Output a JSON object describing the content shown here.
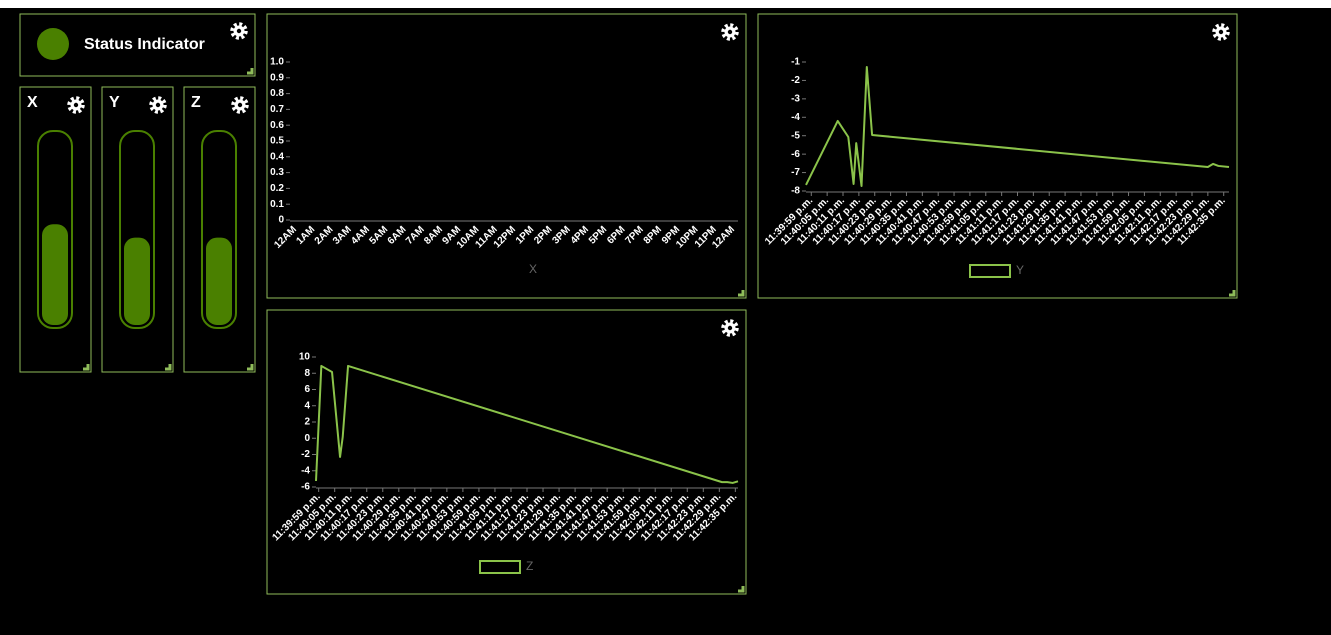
{
  "status": {
    "label": "Status Indicator",
    "color": "#4a8000"
  },
  "gauges": [
    {
      "label": "X",
      "value": 0.53,
      "color": "#4a8000"
    },
    {
      "label": "Y",
      "value": 0.46,
      "color": "#4a8000"
    },
    {
      "label": "Z",
      "value": 0.46,
      "color": "#4a8000"
    }
  ],
  "chart_data": [
    {
      "type": "line",
      "categories": [
        "12AM",
        "1AM",
        "2AM",
        "3AM",
        "4AM",
        "5AM",
        "6AM",
        "7AM",
        "8AM",
        "9AM",
        "10AM",
        "11AM",
        "12PM",
        "1PM",
        "2PM",
        "3PM",
        "4PM",
        "5PM",
        "6PM",
        "7PM",
        "8PM",
        "9PM",
        "10PM",
        "11PM",
        "12AM"
      ],
      "series": [
        {
          "name": "X"
        }
      ],
      "ylim": [
        0,
        1
      ],
      "yticks": [
        0,
        0.1,
        0.2,
        0.3,
        0.4,
        0.5,
        0.6,
        0.7,
        0.8,
        0.9,
        {
          "value": 1,
          "label": "1.0"
        }
      ]
    },
    {
      "type": "line",
      "x": [
        85197,
        85209,
        85213,
        85215,
        85216,
        85218,
        85220,
        85222,
        85349,
        85351,
        85353,
        85357
      ],
      "series": [
        {
          "name": "Y",
          "color": "#8bc34a",
          "values": [
            -7.67,
            -4.2,
            -5.07,
            -7.62,
            -5.4,
            -7.73,
            -1.27,
            -4.96,
            -6.7,
            -6.53,
            -6.64,
            -6.7
          ]
        }
      ],
      "xlim": [
        85197,
        85357
      ],
      "xticks": [
        {
          "value": 85199,
          "label": "11:39:59 p.m."
        },
        {
          "value": 85205,
          "label": "11:40:05 p.m."
        },
        {
          "value": 85211,
          "label": "11:40:11 p.m."
        },
        {
          "value": 85217,
          "label": "11:40:17 p.m."
        },
        {
          "value": 85223,
          "label": "11:40:23 p.m."
        },
        {
          "value": 85229,
          "label": "11:40:29 p.m."
        },
        {
          "value": 85235,
          "label": "11:40:35 p.m."
        },
        {
          "value": 85241,
          "label": "11:40:41 p.m."
        },
        {
          "value": 85247,
          "label": "11:40:47 p.m."
        },
        {
          "value": 85253,
          "label": "11:40:53 p.m."
        },
        {
          "value": 85259,
          "label": "11:40:59 p.m."
        },
        {
          "value": 85265,
          "label": "11:41:05 p.m."
        },
        {
          "value": 85271,
          "label": "11:41:11 p.m."
        },
        {
          "value": 85277,
          "label": "11:41:17 p.m."
        },
        {
          "value": 85283,
          "label": "11:41:23 p.m."
        },
        {
          "value": 85289,
          "label": "11:41:29 p.m."
        },
        {
          "value": 85295,
          "label": "11:41:35 p.m."
        },
        {
          "value": 85301,
          "label": "11:41:41 p.m."
        },
        {
          "value": 85307,
          "label": "11:41:47 p.m."
        },
        {
          "value": 85313,
          "label": "11:41:53 p.m."
        },
        {
          "value": 85319,
          "label": "11:41:59 p.m."
        },
        {
          "value": 85325,
          "label": "11:42:05 p.m."
        },
        {
          "value": 85331,
          "label": "11:42:11 p.m."
        },
        {
          "value": 85337,
          "label": "11:42:17 p.m."
        },
        {
          "value": 85343,
          "label": "11:42:23 p.m."
        },
        {
          "value": 85349,
          "label": "11:42:29 p.m."
        },
        {
          "value": 85355,
          "label": "11:42:35 p.m."
        }
      ],
      "ylim": [
        -8,
        -1
      ],
      "yticks": [
        -1,
        -2,
        -3,
        -4,
        -5,
        -6,
        -7,
        -8
      ]
    },
    {
      "type": "line",
      "x": [
        85198,
        85200,
        85204,
        85207,
        85208,
        85210,
        85350,
        85352,
        85354,
        85356
      ],
      "series": [
        {
          "name": "Z",
          "color": "#8bc34a",
          "values": [
            -5.26,
            8.9,
            8.15,
            -2.3,
            0.15,
            8.9,
            -5.4,
            -5.4,
            -5.5,
            -5.3
          ]
        }
      ],
      "xlim": [
        85198,
        85356
      ],
      "xticks": [
        {
          "value": 85199,
          "label": "11:39:59 p.m."
        },
        {
          "value": 85205,
          "label": "11:40:05 p.m."
        },
        {
          "value": 85211,
          "label": "11:40:11 p.m."
        },
        {
          "value": 85217,
          "label": "11:40:17 p.m."
        },
        {
          "value": 85223,
          "label": "11:40:23 p.m."
        },
        {
          "value": 85229,
          "label": "11:40:29 p.m."
        },
        {
          "value": 85235,
          "label": "11:40:35 p.m."
        },
        {
          "value": 85241,
          "label": "11:40:41 p.m."
        },
        {
          "value": 85247,
          "label": "11:40:47 p.m."
        },
        {
          "value": 85253,
          "label": "11:40:53 p.m."
        },
        {
          "value": 85259,
          "label": "11:40:59 p.m."
        },
        {
          "value": 85265,
          "label": "11:41:05 p.m."
        },
        {
          "value": 85271,
          "label": "11:41:11 p.m."
        },
        {
          "value": 85277,
          "label": "11:41:17 p.m."
        },
        {
          "value": 85283,
          "label": "11:41:23 p.m."
        },
        {
          "value": 85289,
          "label": "11:41:29 p.m."
        },
        {
          "value": 85295,
          "label": "11:41:35 p.m."
        },
        {
          "value": 85301,
          "label": "11:41:41 p.m."
        },
        {
          "value": 85307,
          "label": "11:41:47 p.m."
        },
        {
          "value": 85313,
          "label": "11:41:53 p.m."
        },
        {
          "value": 85319,
          "label": "11:41:59 p.m."
        },
        {
          "value": 85325,
          "label": "11:42:05 p.m."
        },
        {
          "value": 85331,
          "label": "11:42:11 p.m."
        },
        {
          "value": 85337,
          "label": "11:42:17 p.m."
        },
        {
          "value": 85343,
          "label": "11:42:23 p.m."
        },
        {
          "value": 85349,
          "label": "11:42:29 p.m."
        },
        {
          "value": 85355,
          "label": "11:42:35 p.m."
        }
      ],
      "ylim": [
        -6,
        10
      ],
      "yticks": [
        10,
        8,
        6,
        4,
        2,
        0,
        -2,
        -4,
        -6
      ]
    }
  ]
}
